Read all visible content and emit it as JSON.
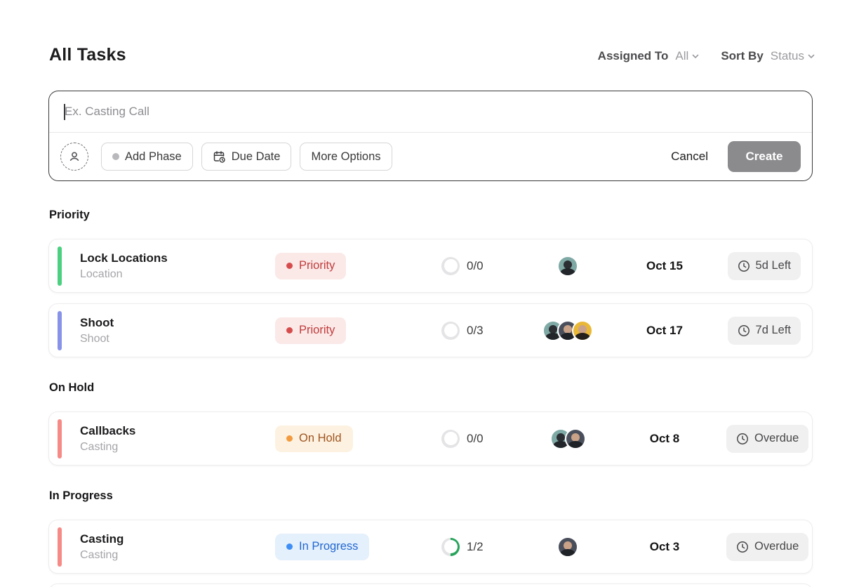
{
  "header": {
    "title": "All Tasks",
    "assigned_to": {
      "label": "Assigned To",
      "value": "All"
    },
    "sort_by": {
      "label": "Sort By",
      "value": "Status"
    }
  },
  "composer": {
    "input_placeholder": "Ex. Casting Call",
    "add_phase_label": "Add Phase",
    "due_date_label": "Due Date",
    "more_options_label": "More Options",
    "cancel_label": "Cancel",
    "create_label": "Create"
  },
  "sections": [
    {
      "label": "Priority",
      "tasks": [
        {
          "title": "Lock Locations",
          "subtitle": "Location",
          "accent_color": "#4cd080",
          "status": {
            "label": "Priority",
            "text_color": "#c03c3c",
            "bg_color": "#fbe9e8"
          },
          "progress": {
            "label": "0/0",
            "percent": 0
          },
          "avatars": [
            "man-teal"
          ],
          "due_date": "Oct 15",
          "time_chip": "5d Left"
        },
        {
          "title": "Shoot",
          "subtitle": "Shoot",
          "accent_color": "#8792e8",
          "status": {
            "label": "Priority",
            "text_color": "#c03c3c",
            "bg_color": "#fbe9e8"
          },
          "progress": {
            "label": "0/3",
            "percent": 0
          },
          "avatars": [
            "man-teal",
            "woman-dark",
            "woman-yellow"
          ],
          "due_date": "Oct 17",
          "time_chip": "7d Left"
        }
      ]
    },
    {
      "label": "On Hold",
      "tasks": [
        {
          "title": "Callbacks",
          "subtitle": "Casting",
          "accent_color": "#f58a87",
          "status": {
            "label": "On Hold",
            "text_color": "#9e5420",
            "bg_color": "#fdf2e1"
          },
          "progress": {
            "label": "0/0",
            "percent": 0
          },
          "avatars": [
            "man-teal",
            "woman-dark"
          ],
          "due_date": "Oct 8",
          "time_chip": "Overdue"
        }
      ]
    },
    {
      "label": "In Progress",
      "tasks": [
        {
          "title": "Casting",
          "subtitle": "Casting",
          "accent_color": "#f58a87",
          "status": {
            "label": "In Progress",
            "text_color": "#2267d1",
            "bg_color": "#e4f0fc"
          },
          "progress": {
            "label": "1/2",
            "percent": 50
          },
          "avatars": [
            "woman-dark"
          ],
          "due_date": "Oct 3",
          "time_chip": "Overdue"
        }
      ]
    }
  ],
  "colors": {
    "create_button_bg": "#8b8b8e",
    "chip_bg": "#f0f0f1",
    "progress_ring_fill": "#27a35b",
    "accent_green": "#4cd080",
    "accent_periwinkle": "#8792e8",
    "accent_salmon": "#f58a87"
  }
}
